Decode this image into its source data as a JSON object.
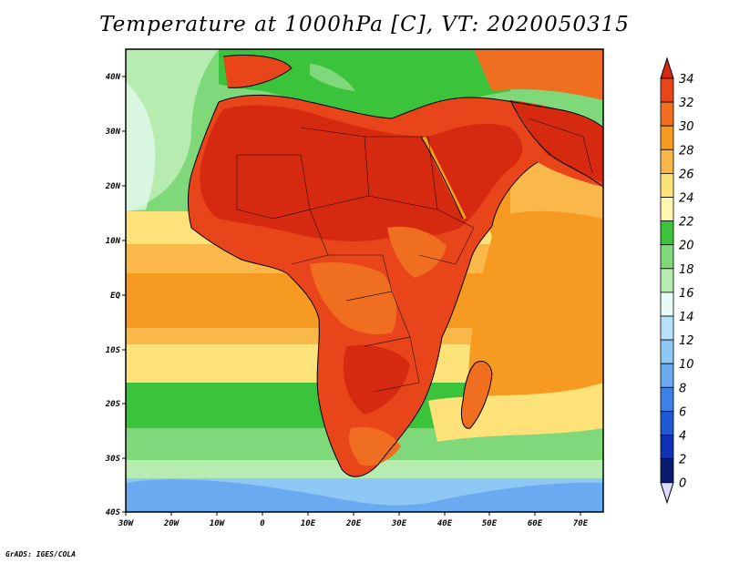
{
  "title": "Temperature at 1000hPa [C], VT: 2020050315",
  "credit": "GrADS: IGES/COLA",
  "lat_labels": [
    "40N",
    "30N",
    "20N",
    "10N",
    "EQ",
    "10S",
    "20S",
    "30S",
    "40S"
  ],
  "lon_labels": [
    "30W",
    "20W",
    "10W",
    "0",
    "10E",
    "20E",
    "30E",
    "40E",
    "50E",
    "60E",
    "70E"
  ],
  "colorbar": {
    "labels": [
      "34",
      "32",
      "30",
      "28",
      "26",
      "24",
      "22",
      "20",
      "18",
      "16",
      "14",
      "12",
      "10",
      "8",
      "6",
      "4",
      "2",
      "0"
    ],
    "colors": {
      "c34": "#d62a10",
      "c32": "#e8451a",
      "c30": "#f06e1f",
      "c28": "#f69a22",
      "c26": "#fbb84a",
      "c24": "#fde27a",
      "c22": "#fff6b0",
      "c20": "#3cc33c",
      "c18": "#7fd87a",
      "c16": "#b6ecb0",
      "c14": "#e8fbf6",
      "c12": "#b8e2fb",
      "c10": "#8ec8f5",
      "c8": "#6aaaf0",
      "c6": "#3c82e6",
      "c4": "#1e5ad2",
      "c2": "#0f32b4",
      "c0": "#0a1a70",
      "under": "#dcdcff"
    }
  },
  "regions": [
    "Africa",
    "Arabian Peninsula",
    "Madagascar",
    "Mediterranean Sea",
    "Atlantic Ocean",
    "Indian Ocean"
  ]
}
